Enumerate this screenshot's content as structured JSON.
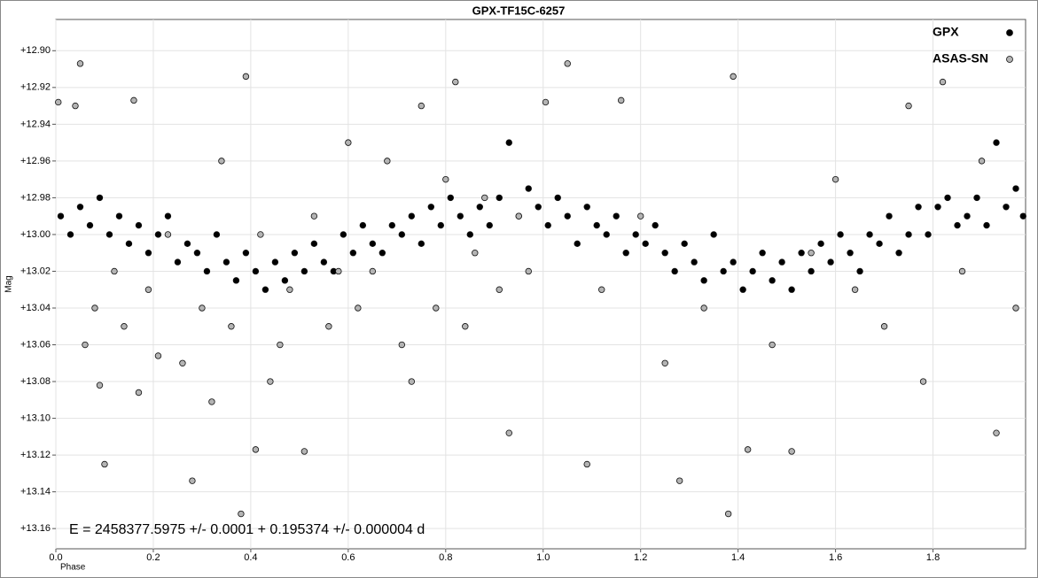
{
  "chart_data": {
    "type": "scatter",
    "title": "GPX-TF15C-6257",
    "x_label": "Phase",
    "y_label": "Mag",
    "annotation": "E = 2458377.5975 +/- 0.0001 + 0.195374 +/- 0.000004 d",
    "xlim": [
      0,
      1.99
    ],
    "ylim": [
      13.171,
      12.883
    ],
    "xticks": [
      {
        "value": 0,
        "label": "0.0"
      },
      0.2,
      0.4,
      0.6,
      0.8,
      {
        "value": 1,
        "label": "1.0"
      },
      1.2,
      1.4,
      1.6,
      1.8
    ],
    "yticks": [
      {
        "value": 12.9,
        "label": "+12.90"
      },
      {
        "value": 12.92,
        "label": "+12.92"
      },
      {
        "value": 12.94,
        "label": "+12.94"
      },
      {
        "value": 12.96,
        "label": "+12.96"
      },
      {
        "value": 12.98,
        "label": "+12.98"
      },
      {
        "value": 13,
        "label": "+13.00"
      },
      {
        "value": 13.02,
        "label": "+13.02"
      },
      {
        "value": 13.04,
        "label": "+13.04"
      },
      {
        "value": 13.06,
        "label": "+13.06"
      },
      {
        "value": 13.08,
        "label": "+13.08"
      },
      {
        "value": 13.1,
        "label": "+13.10"
      },
      {
        "value": 13.12,
        "label": "+13.12"
      },
      {
        "value": 13.14,
        "label": "+13.14"
      },
      {
        "value": 13.16,
        "label": "+13.16"
      }
    ],
    "grid": true,
    "legend": "upper right",
    "series": [
      {
        "name": "GPX",
        "color": "#000000",
        "x": [
          0.01,
          0.03,
          0.05,
          0.07,
          0.09,
          0.11,
          0.13,
          0.15,
          0.17,
          0.19,
          0.21,
          0.23,
          0.25,
          0.27,
          0.29,
          0.31,
          0.33,
          0.35,
          0.37,
          0.39,
          0.41,
          0.43,
          0.45,
          0.47,
          0.49,
          0.51,
          0.53,
          0.55,
          0.57,
          0.59,
          0.61,
          0.63,
          0.65,
          0.67,
          0.69,
          0.71,
          0.73,
          0.75,
          0.77,
          0.79,
          0.81,
          0.83,
          0.85,
          0.87,
          0.89,
          0.91,
          0.93,
          0.95,
          0.97,
          0.99,
          1.01,
          1.03,
          1.05,
          1.07,
          1.09,
          1.11,
          1.13,
          1.15,
          1.17,
          1.19,
          1.21,
          1.23,
          1.25,
          1.27,
          1.29,
          1.31,
          1.33,
          1.35,
          1.37,
          1.39,
          1.41,
          1.43,
          1.45,
          1.47,
          1.49,
          1.51,
          1.53,
          1.55,
          1.57,
          1.59,
          1.61,
          1.63,
          1.65,
          1.67,
          1.69,
          1.71,
          1.73,
          1.75,
          1.77,
          1.79,
          1.81,
          1.83,
          1.85,
          1.87,
          1.89,
          1.91,
          1.93,
          1.95,
          1.97,
          1.985
        ],
        "values": [
          12.99,
          13.0,
          12.985,
          12.995,
          12.98,
          13.0,
          12.99,
          13.005,
          12.995,
          13.01,
          13.0,
          12.99,
          13.015,
          13.005,
          13.01,
          13.02,
          13.0,
          13.015,
          13.025,
          13.01,
          13.02,
          13.03,
          13.015,
          13.025,
          13.01,
          13.02,
          13.005,
          13.015,
          13.02,
          13.0,
          13.01,
          12.995,
          13.005,
          13.01,
          12.995,
          13.0,
          12.99,
          13.005,
          12.985,
          12.995,
          12.98,
          12.99,
          13.0,
          12.985,
          12.995,
          12.98,
          12.95,
          12.99,
          12.975,
          12.985,
          12.995,
          12.98,
          12.99,
          13.005,
          12.985,
          12.995,
          13.0,
          12.99,
          13.01,
          13.0,
          13.005,
          12.995,
          13.01,
          13.02,
          13.005,
          13.015,
          13.025,
          13.0,
          13.02,
          13.015,
          13.03,
          13.02,
          13.01,
          13.025,
          13.015,
          13.03,
          13.01,
          13.02,
          13.005,
          13.015,
          13.0,
          13.01,
          13.02,
          13.0,
          13.005,
          12.99,
          13.01,
          13.0,
          12.985,
          13.0,
          12.985,
          12.98,
          12.995,
          12.99,
          12.98,
          12.995,
          12.95,
          12.985,
          12.975,
          12.99
        ]
      },
      {
        "name": "ASAS-SN",
        "color": "#b4b4b4",
        "x": [
          0.005,
          0.04,
          0.05,
          0.06,
          0.08,
          0.09,
          0.1,
          0.12,
          0.14,
          0.16,
          0.17,
          0.19,
          0.21,
          0.23,
          0.26,
          0.28,
          0.3,
          0.32,
          0.34,
          0.36,
          0.38,
          0.39,
          0.41,
          0.42,
          0.44,
          0.46,
          0.48,
          0.51,
          0.53,
          0.56,
          0.58,
          0.6,
          0.62,
          0.65,
          0.68,
          0.71,
          0.73,
          0.75,
          0.78,
          0.8,
          0.82,
          0.84,
          0.86,
          0.88,
          0.91,
          0.93,
          0.95,
          0.97,
          1.005,
          1.05,
          1.09,
          1.12,
          1.16,
          1.2,
          1.25,
          1.28,
          1.33,
          1.38,
          1.39,
          1.42,
          1.47,
          1.51,
          1.55,
          1.6,
          1.64,
          1.7,
          1.75,
          1.78,
          1.82,
          1.86,
          1.9,
          1.93,
          1.97
        ],
        "values": [
          12.928,
          12.93,
          12.907,
          13.06,
          13.04,
          13.082,
          13.125,
          13.02,
          13.05,
          12.927,
          13.086,
          13.03,
          13.066,
          13.0,
          13.07,
          13.134,
          13.04,
          13.091,
          12.96,
          13.05,
          13.152,
          12.914,
          13.117,
          13.0,
          13.08,
          13.06,
          13.03,
          13.118,
          12.99,
          13.05,
          13.02,
          12.95,
          13.04,
          13.02,
          12.96,
          13.06,
          13.08,
          12.93,
          13.04,
          12.97,
          12.917,
          13.05,
          13.01,
          12.98,
          13.03,
          13.108,
          12.99,
          13.02,
          12.928,
          12.907,
          13.125,
          13.03,
          12.927,
          12.99,
          13.07,
          13.134,
          13.04,
          13.152,
          12.914,
          13.117,
          13.06,
          13.118,
          13.01,
          12.97,
          13.03,
          13.05,
          12.93,
          13.08,
          12.917,
          13.02,
          12.96,
          13.108,
          13.04
        ]
      }
    ]
  }
}
